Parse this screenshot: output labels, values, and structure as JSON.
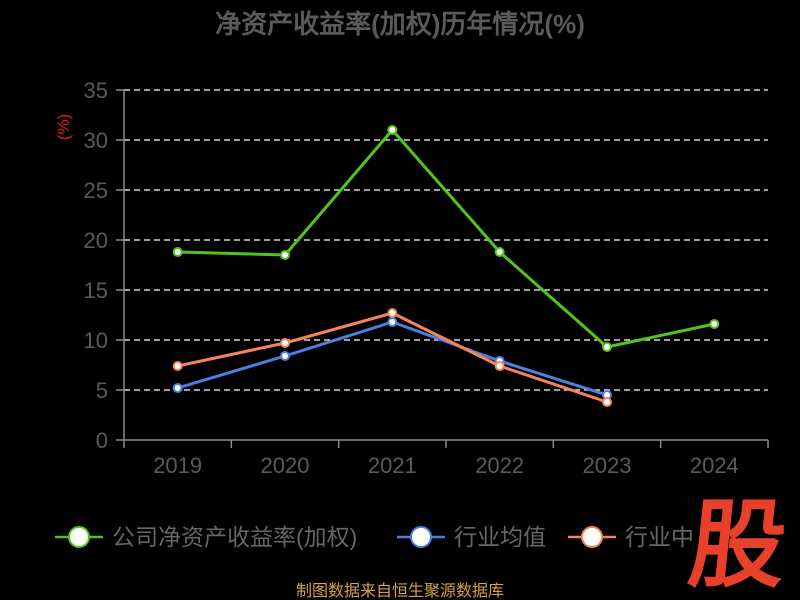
{
  "footer": "制图数据来自恒生聚源数据库",
  "logo_text": "股",
  "colors": {
    "background": "#000000",
    "axis": "#8c8c8c",
    "grid": "#ffffff",
    "ylabel": "#e02020",
    "footer": "#d4a24c",
    "logo": "#e8402a"
  },
  "chart_data": {
    "type": "line",
    "title": "净资产收益率(加权)历年情况(%)",
    "xlabel": "",
    "ylabel": "(%)",
    "categories": [
      "2019",
      "2020",
      "2021",
      "2022",
      "2023",
      "2024"
    ],
    "ylim": [
      0,
      35
    ],
    "yticks": [
      0,
      5,
      10,
      15,
      20,
      25,
      30,
      35
    ],
    "grid": true,
    "legend": "bottom",
    "series": [
      {
        "name": "公司净资产收益率(加权)",
        "color": "#52c41a",
        "values": [
          18.8,
          18.5,
          31.0,
          18.8,
          9.3,
          11.6
        ]
      },
      {
        "name": "行业均值",
        "color": "#4a80e0",
        "values": [
          5.2,
          8.4,
          11.8,
          7.9,
          4.5,
          null
        ]
      },
      {
        "name": "行业中",
        "color": "#f5845a",
        "values": [
          7.4,
          9.7,
          12.7,
          7.4,
          3.8,
          null
        ]
      }
    ]
  }
}
